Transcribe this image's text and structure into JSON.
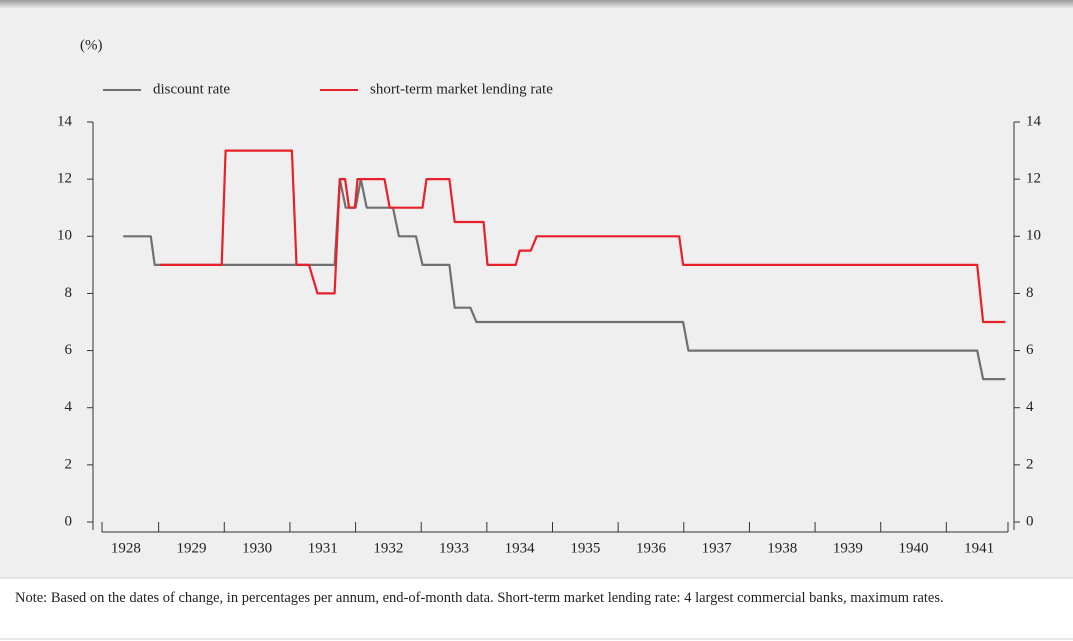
{
  "chart_data": {
    "type": "line",
    "unit_label": "(%)",
    "categories": [
      "1928",
      "1929",
      "1930",
      "1931",
      "1932",
      "1933",
      "1934",
      "1935",
      "1936",
      "1937",
      "1938",
      "1939",
      "1940",
      "1941"
    ],
    "xlim": [
      1928,
      1942
    ],
    "xticks": [
      1929,
      1930,
      1931,
      1932,
      1933,
      1934,
      1935,
      1936,
      1937,
      1938,
      1939,
      1940,
      1941
    ],
    "ylim": [
      0,
      14
    ],
    "yticks": [
      0,
      2,
      4,
      6,
      8,
      10,
      12,
      14
    ],
    "y2lim": [
      0,
      14
    ],
    "y2ticks": [
      0,
      2,
      4,
      6,
      8,
      10,
      12,
      14
    ],
    "series": [
      {
        "name": "discount rate",
        "color": "#707070",
        "x": [
          1928.46,
          1928.88,
          1928.94,
          1931.68,
          1931.76,
          1931.85,
          1932.0,
          1932.08,
          1932.17,
          1932.57,
          1932.66,
          1932.92,
          1933.02,
          1933.43,
          1933.51,
          1933.75,
          1933.84,
          1936.99,
          1937.07,
          1941.47,
          1941.56,
          1941.9
        ],
        "values": [
          10,
          10,
          9,
          9,
          12,
          11,
          11,
          12,
          11,
          11,
          10,
          10,
          9,
          9,
          7.5,
          7.5,
          7,
          7,
          6,
          6,
          5,
          5
        ]
      },
      {
        "name": "short-term market lending rate",
        "color": "#e8202a",
        "x": [
          1929.02,
          1929.96,
          1930.02,
          1931.03,
          1931.1,
          1931.29,
          1931.42,
          1931.68,
          1931.76,
          1931.84,
          1931.9,
          1931.99,
          1932.03,
          1932.44,
          1932.52,
          1933.02,
          1933.08,
          1933.43,
          1933.51,
          1933.95,
          1934.01,
          1934.44,
          1934.5,
          1934.67,
          1934.76,
          1936.93,
          1936.99,
          1941.47,
          1941.56,
          1941.9
        ],
        "values": [
          9,
          9,
          13,
          13,
          9,
          9,
          8,
          8,
          12,
          12,
          11,
          11,
          12,
          12,
          11,
          11,
          12,
          12,
          10.5,
          10.5,
          9,
          9,
          9.5,
          9.5,
          10,
          10,
          9,
          9,
          7,
          7
        ]
      }
    ],
    "note": "Note: Based on the dates of change, in percentages per annum, end-of-month data. Short-term market lending rate: 4 largest commercial banks, maximum rates."
  }
}
